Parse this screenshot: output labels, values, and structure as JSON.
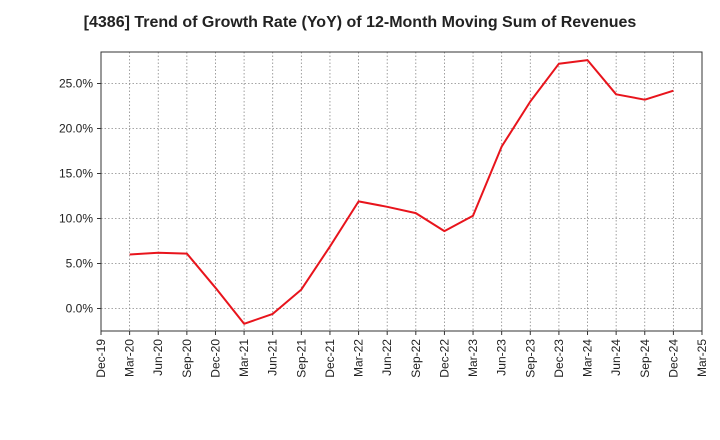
{
  "chart_data": {
    "type": "line",
    "title": "[4386]  Trend of Growth Rate (YoY) of 12-Month Moving Sum of Revenues",
    "xlabel": "",
    "ylabel": "",
    "x_ticks": [
      "Dec-19",
      "Mar-20",
      "Jun-20",
      "Sep-20",
      "Dec-20",
      "Mar-21",
      "Jun-21",
      "Sep-21",
      "Dec-21",
      "Mar-22",
      "Jun-22",
      "Sep-22",
      "Dec-22",
      "Mar-23",
      "Jun-23",
      "Sep-23",
      "Dec-23",
      "Mar-24",
      "Jun-24",
      "Sep-24",
      "Dec-24",
      "Mar-25"
    ],
    "y_ticks": [
      "0.0%",
      "5.0%",
      "10.0%",
      "15.0%",
      "20.0%",
      "25.0%"
    ],
    "y_tick_values": [
      0,
      5,
      10,
      15,
      20,
      25
    ],
    "ylim": [
      -2.5,
      28.5
    ],
    "grid": true,
    "line_color": "#e8141c",
    "series": [
      {
        "x": [
          "Mar-20",
          "Jun-20",
          "Sep-20",
          "Dec-20",
          "Mar-21",
          "Jun-21",
          "Sep-21",
          "Dec-21",
          "Mar-22",
          "Jun-22",
          "Sep-22",
          "Dec-22",
          "Mar-23",
          "Jun-23",
          "Sep-23",
          "Dec-23",
          "Mar-24",
          "Jun-24",
          "Sep-24",
          "Dec-24"
        ],
        "values": [
          6.0,
          6.2,
          6.1,
          2.3,
          -1.7,
          -0.6,
          2.1,
          6.9,
          11.9,
          11.3,
          10.6,
          8.6,
          10.3,
          18.0,
          23.0,
          27.2,
          27.6,
          23.8,
          23.2,
          24.2
        ]
      }
    ]
  }
}
